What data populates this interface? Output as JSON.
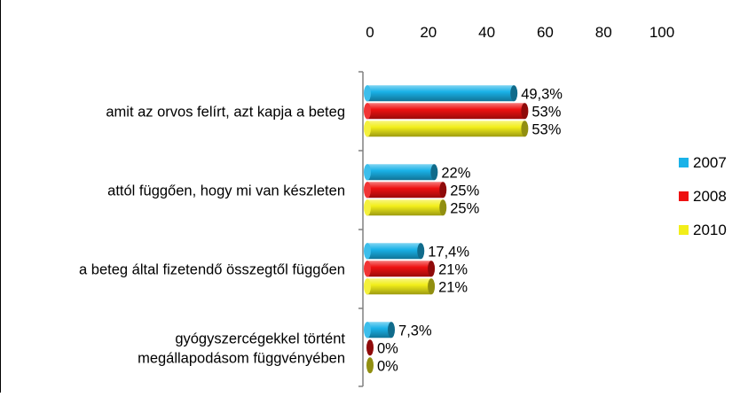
{
  "chart_data": {
    "type": "bar",
    "orientation": "horizontal",
    "style": "3d-cylinder",
    "categories": [
      "amit az orvos felírt, azt kapja a beteg",
      "attól függően, hogy mi van készleten",
      "a beteg által fizetendő összegtől függően",
      "gyógyszercégekkel történt megállapodásom függvényében"
    ],
    "category_lines": [
      [
        "amit az orvos felírt, azt kapja a beteg"
      ],
      [
        "attól függően, hogy mi van készleten"
      ],
      [
        "a beteg által fizetendő összegtől függően"
      ],
      [
        "gyógyszercégekkel történt",
        "megállapodásom függvényében"
      ]
    ],
    "series": [
      {
        "name": "2007",
        "color": "#1ab2e8",
        "values": [
          49.3,
          22,
          17.4,
          7.3
        ],
        "labels": [
          "49,3%",
          "22%",
          "17,4%",
          "7,3%"
        ]
      },
      {
        "name": "2008",
        "color": "#ee1111",
        "values": [
          53,
          25,
          21,
          0
        ],
        "labels": [
          "53%",
          "25%",
          "21%",
          "0%"
        ]
      },
      {
        "name": "2010",
        "color": "#f2ee1a",
        "values": [
          53,
          25,
          21,
          0
        ],
        "labels": [
          "53%",
          "25%",
          "21%",
          "0%"
        ]
      }
    ],
    "xlim": [
      0,
      100
    ],
    "xticks": [
      0,
      20,
      40,
      60,
      80,
      100
    ],
    "x_axis_position": "top",
    "legend_position": "right",
    "grid": false
  }
}
